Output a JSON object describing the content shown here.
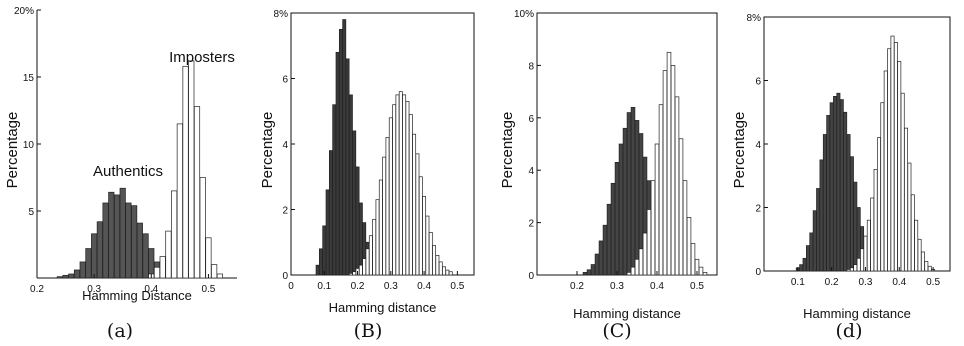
{
  "chart_data": [
    {
      "type": "bar",
      "caption": "(a)",
      "xlabel": "Hamming Distance",
      "ylabel": "Percentage",
      "xlim": [
        0.2,
        0.55
      ],
      "ylim": [
        0,
        20
      ],
      "xticks": [
        "0.2",
        "0.3",
        "0.4",
        "0.5"
      ],
      "xtick_values": [
        0.2,
        0.3,
        0.4,
        0.5
      ],
      "yticks": [
        "5",
        "10",
        "15",
        "20%"
      ],
      "ytick_values": [
        5,
        10,
        15,
        20
      ],
      "annotations": [
        "Authentics",
        "Imposters"
      ],
      "colors": {
        "authentic": "#555555",
        "imposter": "#ffffff"
      },
      "series": [
        {
          "name": "Authentics",
          "x": [
            0.24,
            0.25,
            0.26,
            0.27,
            0.28,
            0.29,
            0.3,
            0.31,
            0.32,
            0.33,
            0.34,
            0.35,
            0.36,
            0.37,
            0.38,
            0.39,
            0.4,
            0.41,
            0.42,
            0.43
          ],
          "values": [
            0.1,
            0.2,
            0.3,
            0.6,
            1.2,
            2.2,
            3.3,
            4.2,
            5.6,
            6.4,
            6.2,
            6.7,
            5.6,
            5.4,
            4.1,
            3.3,
            2.2,
            1.2,
            0.6,
            0.3
          ]
        },
        {
          "name": "Imposters",
          "x": [
            0.4,
            0.41,
            0.42,
            0.43,
            0.44,
            0.45,
            0.46,
            0.47,
            0.48,
            0.49,
            0.5,
            0.51,
            0.52
          ],
          "values": [
            0.3,
            0.8,
            1.6,
            3.5,
            6.5,
            11.5,
            15.8,
            16.2,
            12.8,
            7.5,
            3.0,
            1.0,
            0.3
          ]
        }
      ]
    },
    {
      "type": "bar",
      "caption": "(B)",
      "xlabel": "Hamming distance",
      "ylabel": "Percentage",
      "xlim": [
        0,
        0.55
      ],
      "ylim": [
        0,
        8
      ],
      "xticks": [
        "0",
        "0.1",
        "0.2",
        "0.3",
        "0.4",
        "0.5"
      ],
      "xtick_values": [
        0,
        0.1,
        0.2,
        0.3,
        0.4,
        0.5
      ],
      "yticks": [
        "0",
        "2",
        "4",
        "6",
        "8%"
      ],
      "ytick_values": [
        0,
        2,
        4,
        6,
        8
      ],
      "colors": {
        "authentic": "#3a3a3a",
        "imposter": "#ffffff"
      },
      "series": [
        {
          "name": "",
          "x": [
            0.08,
            0.09,
            0.1,
            0.11,
            0.12,
            0.13,
            0.14,
            0.15,
            0.16,
            0.17,
            0.18,
            0.19,
            0.2,
            0.21,
            0.22,
            0.23,
            0.24,
            0.25,
            0.26,
            0.27,
            0.28
          ],
          "values": [
            0.3,
            0.8,
            1.5,
            2.6,
            3.8,
            5.2,
            6.8,
            7.5,
            7.8,
            6.6,
            5.5,
            4.4,
            3.3,
            2.2,
            1.6,
            1.0,
            0.6,
            0.4,
            0.2,
            0.1,
            0.05
          ]
        },
        {
          "name": "",
          "x": [
            0.18,
            0.19,
            0.2,
            0.21,
            0.22,
            0.23,
            0.24,
            0.25,
            0.26,
            0.27,
            0.28,
            0.29,
            0.3,
            0.31,
            0.32,
            0.33,
            0.34,
            0.35,
            0.36,
            0.37,
            0.38,
            0.39,
            0.4,
            0.41,
            0.42,
            0.43,
            0.44,
            0.45,
            0.46,
            0.47,
            0.48
          ],
          "values": [
            0.05,
            0.1,
            0.2,
            0.3,
            0.5,
            0.8,
            1.2,
            1.7,
            2.3,
            2.9,
            3.6,
            4.2,
            4.8,
            5.2,
            5.5,
            5.6,
            5.5,
            5.3,
            4.9,
            4.3,
            3.7,
            3.0,
            2.4,
            1.8,
            1.3,
            0.9,
            0.6,
            0.4,
            0.25,
            0.15,
            0.1
          ]
        }
      ]
    },
    {
      "type": "bar",
      "caption": "(C)",
      "xlabel": "Hamming distance",
      "ylabel": "Percentage",
      "xlim": [
        0.1,
        0.55
      ],
      "ylim": [
        0,
        10
      ],
      "xticks": [
        "0.2",
        "0.3",
        "0.4",
        "0.5"
      ],
      "xtick_values": [
        0.2,
        0.3,
        0.4,
        0.5
      ],
      "yticks": [
        "0",
        "2",
        "4",
        "6",
        "8",
        "10%"
      ],
      "ytick_values": [
        0,
        2,
        4,
        6,
        8,
        10
      ],
      "colors": {
        "authentic": "#444444",
        "imposter": "#ffffff"
      },
      "series": [
        {
          "name": "",
          "x": [
            0.22,
            0.23,
            0.24,
            0.25,
            0.26,
            0.27,
            0.28,
            0.29,
            0.3,
            0.31,
            0.32,
            0.33,
            0.34,
            0.35,
            0.36,
            0.37,
            0.38,
            0.39,
            0.4,
            0.41,
            0.42,
            0.43
          ],
          "values": [
            0.1,
            0.2,
            0.4,
            0.8,
            1.3,
            1.9,
            2.7,
            3.5,
            4.3,
            5.0,
            5.6,
            6.2,
            6.4,
            5.9,
            5.4,
            4.5,
            3.6,
            2.6,
            1.7,
            1.0,
            0.5,
            0.2
          ]
        },
        {
          "name": "",
          "x": [
            0.33,
            0.34,
            0.35,
            0.36,
            0.37,
            0.38,
            0.39,
            0.4,
            0.41,
            0.42,
            0.43,
            0.44,
            0.45,
            0.46,
            0.47,
            0.48,
            0.49,
            0.5,
            0.51,
            0.52
          ],
          "values": [
            0.1,
            0.3,
            0.6,
            1.0,
            1.6,
            2.5,
            3.6,
            5.0,
            6.5,
            7.8,
            8.5,
            8.0,
            6.8,
            5.2,
            3.6,
            2.2,
            1.2,
            0.6,
            0.3,
            0.1
          ]
        }
      ]
    },
    {
      "type": "bar",
      "caption": "(d)",
      "xlabel": "Hamming distance",
      "ylabel": "Percentage",
      "xlim": [
        0,
        0.55
      ],
      "ylim": [
        0,
        8
      ],
      "xticks": [
        "0.1",
        "0.2",
        "0.3",
        "0.4",
        "0.5"
      ],
      "xtick_values": [
        0.1,
        0.2,
        0.3,
        0.4,
        0.5
      ],
      "yticks": [
        "0",
        "2",
        "4",
        "6",
        "8%"
      ],
      "ytick_values": [
        0,
        2,
        4,
        6,
        8
      ],
      "colors": {
        "authentic": "#444444",
        "imposter": "#ffffff"
      },
      "series": [
        {
          "name": "",
          "x": [
            0.1,
            0.11,
            0.12,
            0.13,
            0.14,
            0.15,
            0.16,
            0.17,
            0.18,
            0.19,
            0.2,
            0.21,
            0.22,
            0.23,
            0.24,
            0.25,
            0.26,
            0.27,
            0.28,
            0.29,
            0.3,
            0.31,
            0.32,
            0.33,
            0.34
          ],
          "values": [
            0.1,
            0.2,
            0.4,
            0.8,
            1.2,
            1.9,
            2.6,
            3.5,
            4.3,
            4.9,
            5.3,
            5.5,
            5.6,
            5.4,
            5.0,
            4.3,
            3.6,
            2.8,
            2.0,
            1.4,
            0.9,
            0.6,
            0.35,
            0.2,
            0.1
          ]
        },
        {
          "name": "",
          "x": [
            0.25,
            0.26,
            0.27,
            0.28,
            0.29,
            0.3,
            0.31,
            0.32,
            0.33,
            0.34,
            0.35,
            0.36,
            0.37,
            0.38,
            0.39,
            0.4,
            0.41,
            0.42,
            0.43,
            0.44,
            0.45,
            0.46,
            0.47,
            0.48,
            0.49,
            0.5
          ],
          "values": [
            0.05,
            0.1,
            0.2,
            0.4,
            0.7,
            1.1,
            1.6,
            2.3,
            3.2,
            4.2,
            5.3,
            6.3,
            7.0,
            7.4,
            7.2,
            6.6,
            5.6,
            4.5,
            3.4,
            2.4,
            1.6,
            1.0,
            0.6,
            0.3,
            0.15,
            0.05
          ]
        }
      ]
    }
  ]
}
